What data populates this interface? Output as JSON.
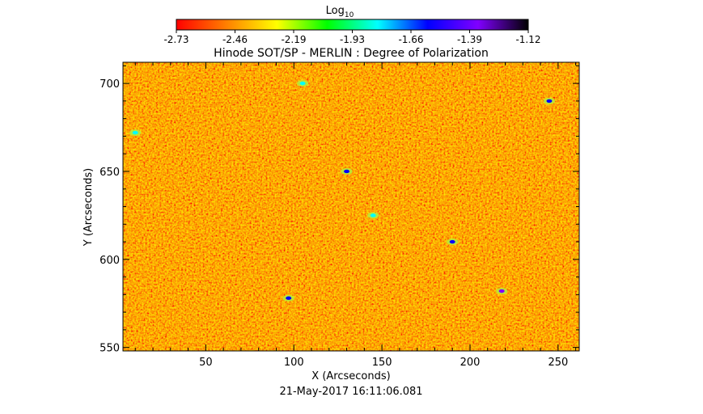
{
  "colorbar": {
    "label": "Log",
    "label_sub": "10",
    "ticks": [
      "-2.73",
      "-2.46",
      "-2.19",
      "-1.93",
      "-1.66",
      "-1.39",
      "-1.12"
    ],
    "colors": [
      "#ff0000",
      "#ff8000",
      "#ffff00",
      "#00ff00",
      "#00ffff",
      "#0000ff",
      "#8000ff",
      "#000000"
    ]
  },
  "timestamp": "21-May-2017 16:11:06.081",
  "chart_data": {
    "type": "heatmap",
    "title": "Hinode SOT/SP - MERLIN : Degree of Polarization",
    "xlabel": "X (Arcseconds)",
    "ylabel": "Y (Arcseconds)",
    "xlim": [
      3,
      262
    ],
    "ylim": [
      548,
      712
    ],
    "xticks": [
      50,
      100,
      150,
      200,
      250
    ],
    "yticks": [
      550,
      600,
      650,
      700
    ],
    "value_label": "Log10 Degree of Polarization",
    "value_range": [
      -2.73,
      -1.12
    ],
    "background_level": -2.6,
    "enhanced_features": [
      {
        "x": 130,
        "y": 650,
        "value": -1.6
      },
      {
        "x": 190,
        "y": 610,
        "value": -1.5
      },
      {
        "x": 218,
        "y": 582,
        "value": -1.4
      },
      {
        "x": 97,
        "y": 578,
        "value": -1.6
      },
      {
        "x": 10,
        "y": 672,
        "value": -1.7
      },
      {
        "x": 245,
        "y": 690,
        "value": -1.6
      },
      {
        "x": 145,
        "y": 625,
        "value": -1.9
      },
      {
        "x": 105,
        "y": 700,
        "value": -1.8
      }
    ]
  }
}
